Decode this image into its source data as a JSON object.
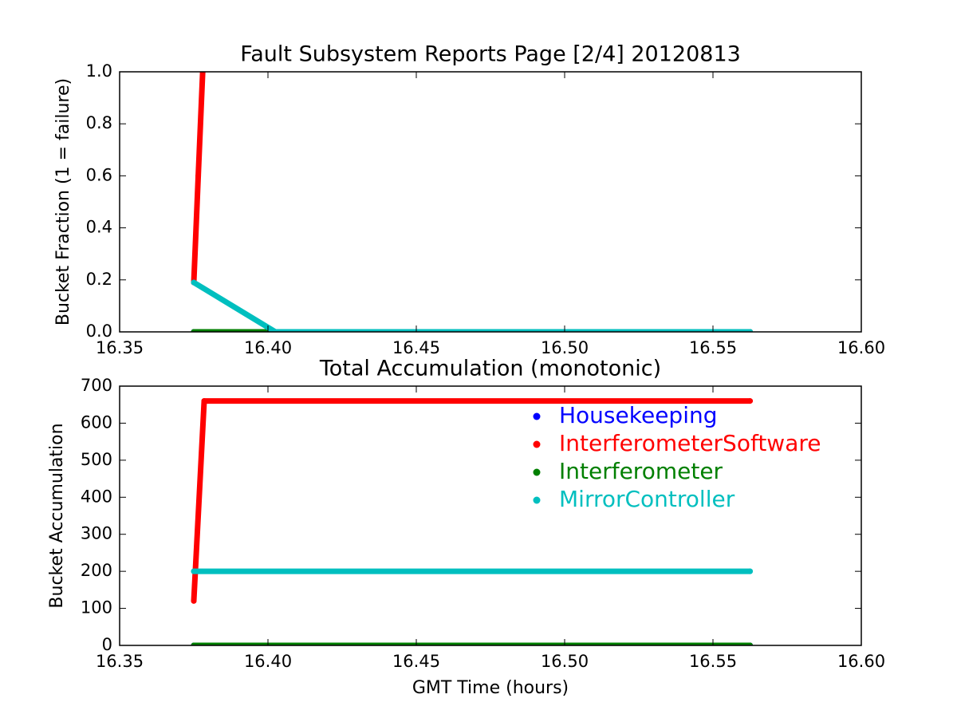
{
  "chart_data": [
    {
      "type": "line",
      "title": "Fault Subsystem Reports Page [2/4] 20120813",
      "ylabel": "Bucket Fraction (1 = failure)",
      "xlim": [
        16.35,
        16.6
      ],
      "xticks": [
        16.35,
        {
          "value": 16.4,
          "label": "16.40"
        },
        16.45,
        {
          "value": 16.5,
          "label": "16.50"
        },
        16.55,
        {
          "value": 16.6,
          "label": "16.60"
        }
      ],
      "ylim": [
        0,
        1
      ],
      "yticks": [
        {
          "value": 0,
          "label": "0.0"
        },
        0.2,
        0.4,
        0.6,
        0.8,
        {
          "value": 1,
          "label": "1.0"
        }
      ],
      "series": [
        {
          "color": "#0000ff",
          "x": [
            16.375,
            16.5625
          ],
          "values": [
            0,
            0
          ]
        },
        {
          "color": "#ff0000",
          "x": [
            16.375,
            16.3765,
            16.378
          ],
          "values": [
            0.19,
            0.6,
            1.0
          ]
        },
        {
          "color": "#008000",
          "x": [
            16.375,
            16.5625
          ],
          "values": [
            0,
            0
          ]
        },
        {
          "color": "#00bfbf",
          "x": [
            16.375,
            16.4025,
            16.5625
          ],
          "values": [
            0.19,
            0,
            0
          ]
        }
      ]
    },
    {
      "type": "line",
      "title": "Total Accumulation (monotonic)",
      "xlabel": "GMT Time (hours)",
      "ylabel": "Bucket Accumulation",
      "xlim": [
        16.35,
        16.6
      ],
      "xticks": [
        16.35,
        {
          "value": 16.4,
          "label": "16.40"
        },
        16.45,
        {
          "value": 16.5,
          "label": "16.50"
        },
        16.55,
        {
          "value": 16.6,
          "label": "16.60"
        }
      ],
      "ylim": [
        0,
        700
      ],
      "yticks": [
        0,
        100,
        200,
        300,
        400,
        500,
        600,
        700
      ],
      "legend": "upper right",
      "series": [
        {
          "name": "Housekeeping",
          "color": "#0000ff",
          "x": [
            16.375,
            16.5625
          ],
          "values": [
            0,
            0
          ]
        },
        {
          "name": "InterferometerSoftware",
          "color": "#ff0000",
          "x": [
            16.375,
            16.3785,
            16.5625
          ],
          "values": [
            120,
            660,
            660
          ]
        },
        {
          "name": "Interferometer",
          "color": "#008000",
          "x": [
            16.375,
            16.5625
          ],
          "values": [
            0,
            0
          ]
        },
        {
          "name": "MirrorController",
          "color": "#00bfbf",
          "x": [
            16.375,
            16.5625
          ],
          "values": [
            200,
            200
          ]
        }
      ]
    }
  ]
}
